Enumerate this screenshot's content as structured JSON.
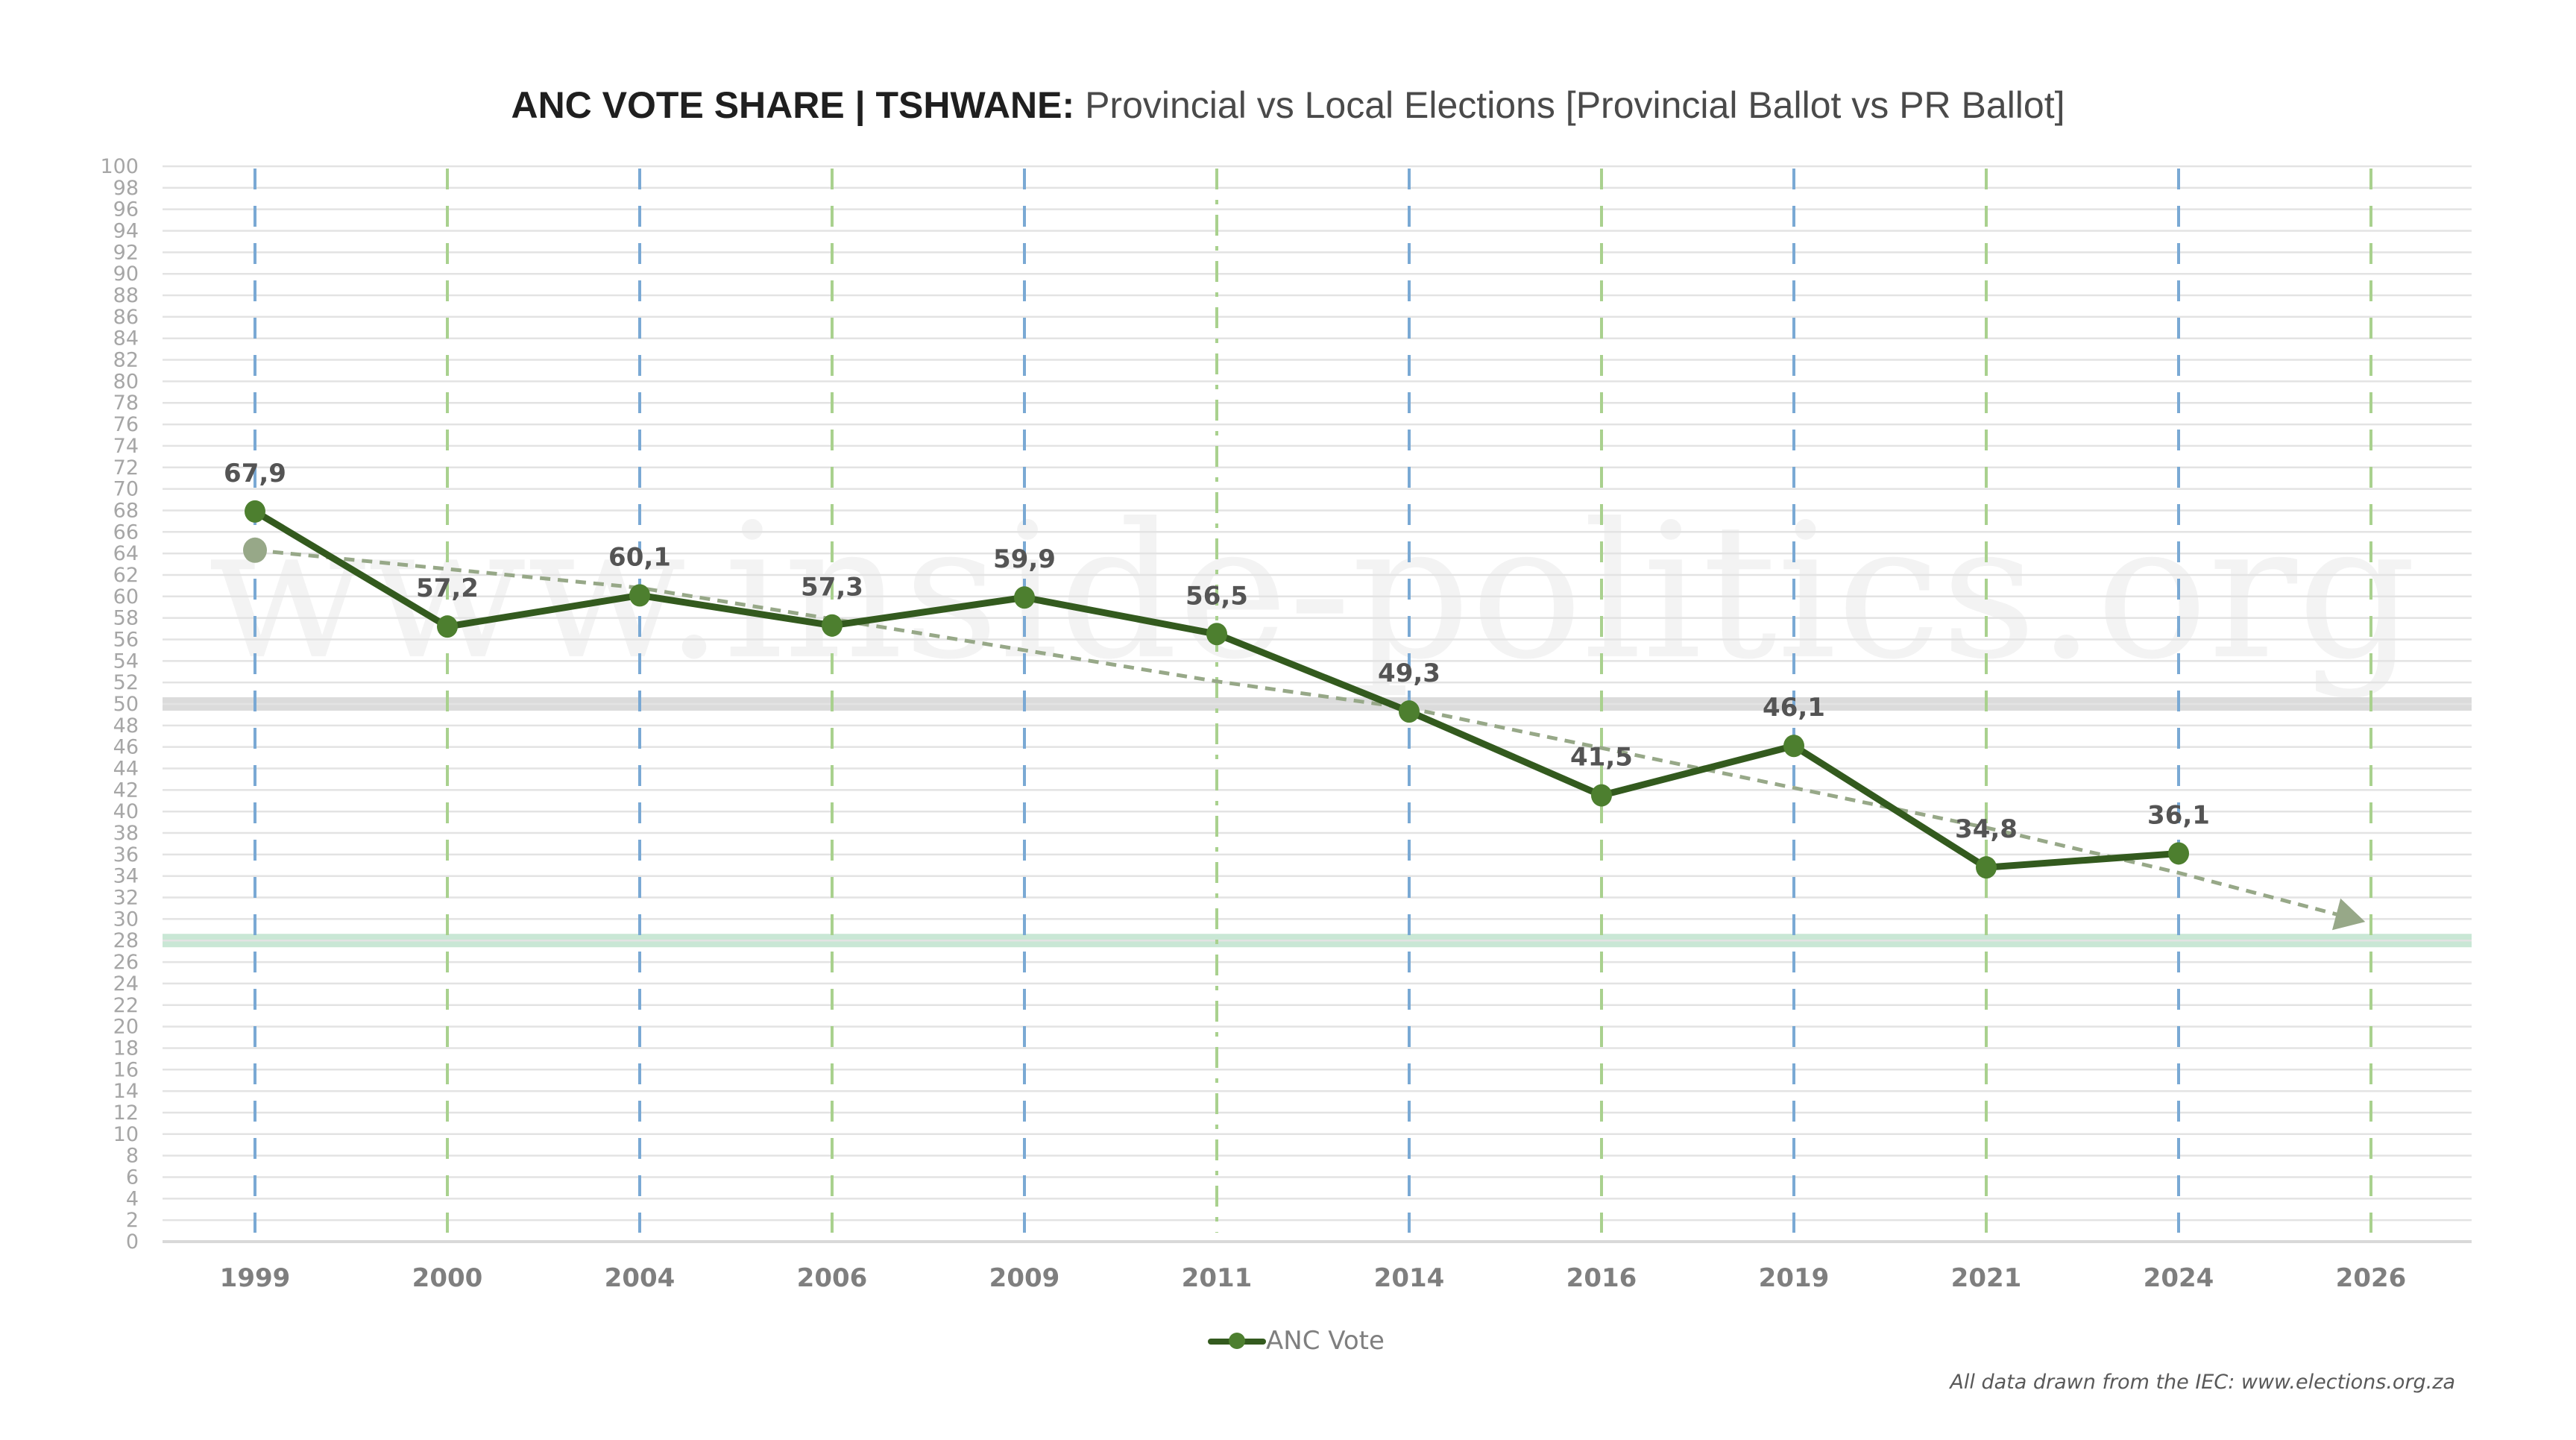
{
  "chart_data": {
    "type": "line",
    "title_bold": "ANC VOTE SHARE | TSHWANE:",
    "title_rest": "Provincial vs Local Elections [Provincial Ballot vs PR Ballot]",
    "xlabel": "",
    "ylabel": "",
    "categories": [
      "1999",
      "2000",
      "2004",
      "2006",
      "2009",
      "2011",
      "2014",
      "2016",
      "2019",
      "2021",
      "2024",
      "2026"
    ],
    "ylim": [
      0,
      100
    ],
    "ytick_step": 2,
    "grid": true,
    "series": [
      {
        "name": "ANC Vote",
        "values": [
          67.9,
          57.2,
          60.1,
          57.3,
          59.9,
          56.5,
          49.3,
          41.5,
          46.1,
          34.8,
          36.1,
          null
        ],
        "labels": [
          "67,9",
          "57,2",
          "60,1",
          "57,3",
          "59,9",
          "56,5",
          "49,3",
          "41,5",
          "46,1",
          "34,8",
          "36,1",
          ""
        ],
        "line_color": "#335a1e",
        "marker_color": "#4d7f2f"
      }
    ],
    "trendline": {
      "style": "dashed-arrow",
      "from": {
        "category": "1999",
        "value": 64.3
      },
      "through": [
        {
          "category": "2004",
          "value": 60.8
        },
        {
          "category": "2011",
          "value": 52.1
        },
        {
          "category": "2014",
          "value": 49.6
        },
        {
          "category": "2021",
          "value": 38.5
        },
        {
          "category": "2024",
          "value": 34.3
        }
      ],
      "to": {
        "category": "2026",
        "value": 29.6
      },
      "color": "#97a888"
    },
    "reference_bands": [
      {
        "value": 50,
        "color": "#d9d9d9"
      },
      {
        "value": 28,
        "color": "#c6e6d3"
      }
    ],
    "vertical_guides": [
      {
        "category": "1999",
        "type": "provincial",
        "color": "#7aa9d4"
      },
      {
        "category": "2000",
        "type": "local",
        "color": "#a9d18e"
      },
      {
        "category": "2004",
        "type": "provincial",
        "color": "#7aa9d4"
      },
      {
        "category": "2006",
        "type": "local",
        "color": "#a9d18e"
      },
      {
        "category": "2009",
        "type": "provincial",
        "color": "#7aa9d4"
      },
      {
        "category": "2011",
        "type": "local-dashdot",
        "color": "#a9d18e"
      },
      {
        "category": "2014",
        "type": "provincial",
        "color": "#7aa9d4"
      },
      {
        "category": "2016",
        "type": "local",
        "color": "#a9d18e"
      },
      {
        "category": "2019",
        "type": "provincial",
        "color": "#7aa9d4"
      },
      {
        "category": "2021",
        "type": "local",
        "color": "#a9d18e"
      },
      {
        "category": "2024",
        "type": "provincial",
        "color": "#7aa9d4"
      },
      {
        "category": "2026",
        "type": "local",
        "color": "#a9d18e"
      }
    ],
    "legend": {
      "entries": [
        "ANC Vote"
      ],
      "position": "bottom"
    },
    "watermark": "www.inside-politics.org",
    "source_note": "All data drawn from the IEC: www.elections.org.za"
  }
}
